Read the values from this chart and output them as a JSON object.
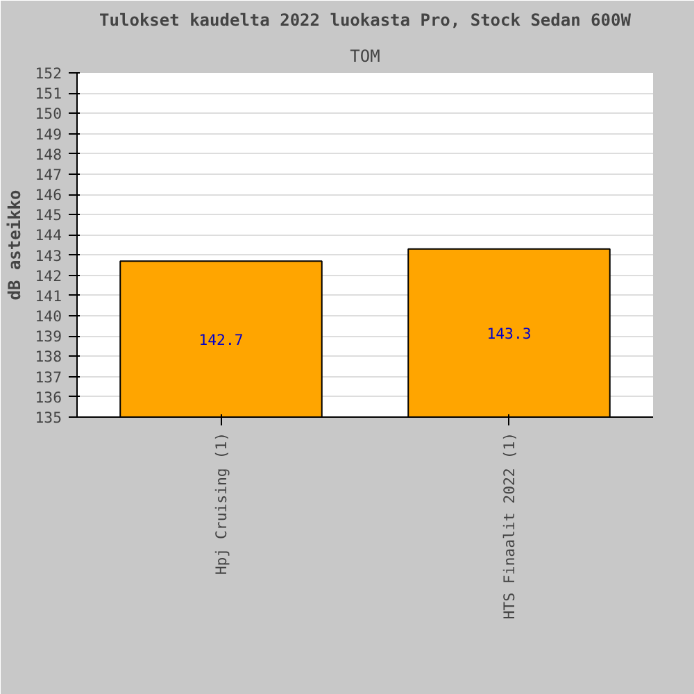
{
  "chart_data": {
    "type": "bar",
    "title": "Tulokset kaudelta 2022 luokasta Pro, Stock Sedan 600W",
    "subtitle": "TOM",
    "ylabel": "dB asteikko",
    "categories": [
      "Hpj Cruising (1)",
      "HTS Finaalit 2022 (1)"
    ],
    "values": [
      142.7,
      143.3
    ],
    "color": "#ffa500",
    "ylim": [
      135,
      152
    ],
    "yticks": [
      135,
      136,
      137,
      138,
      139,
      140,
      141,
      142,
      143,
      144,
      145,
      146,
      147,
      148,
      149,
      150,
      151,
      152
    ],
    "grid": "y",
    "data_labels": true
  }
}
